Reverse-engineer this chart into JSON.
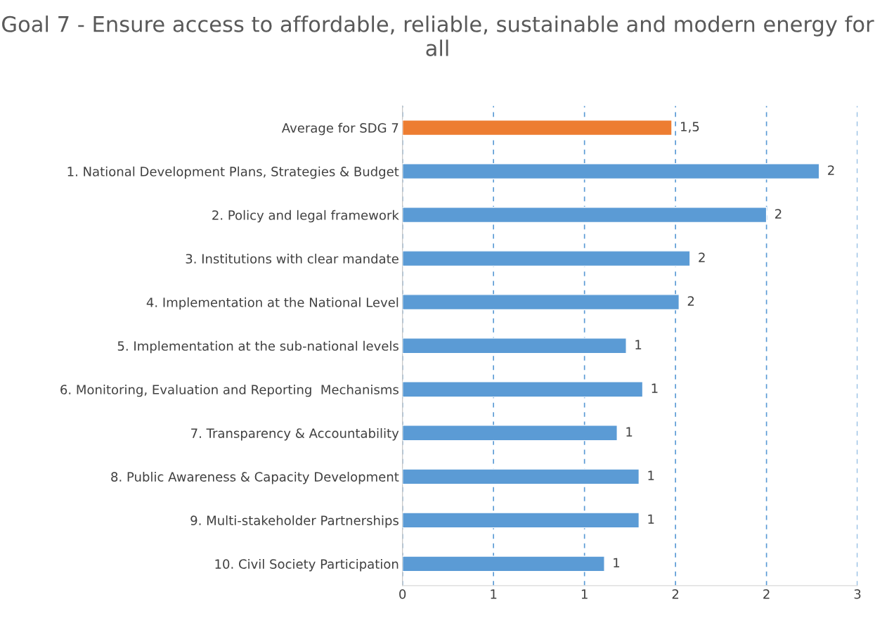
{
  "chart_data": {
    "type": "bar",
    "orientation": "horizontal",
    "title": "Goal 7 - Ensure access to affordable, reliable, sustainable and modern energy for all",
    "categories": [
      "Average for SDG 7",
      "1. National Development Plans, Strategies & Budget",
      "2. Policy and legal framework",
      "3. Institutions with clear mandate",
      "4. Implementation at the National Level",
      "5. Implementation at the sub-national levels",
      "6. Monitoring, Evaluation and Reporting  Mechanisms",
      "7. Transparency & Accountability",
      "8. Public Awareness & Capacity Development",
      "9. Multi-stakeholder Partnerships",
      "10. Civil Society Participation"
    ],
    "values": [
      1.48,
      2.29,
      2.0,
      1.58,
      1.52,
      1.23,
      1.32,
      1.18,
      1.3,
      1.3,
      1.11
    ],
    "value_labels": [
      "1,5",
      "2",
      "2",
      "2",
      "2",
      "1",
      "1",
      "1",
      "1",
      "1",
      "1"
    ],
    "colors": [
      "#ed7d31",
      "#5b9bd5",
      "#5b9bd5",
      "#5b9bd5",
      "#5b9bd5",
      "#5b9bd5",
      "#5b9bd5",
      "#5b9bd5",
      "#5b9bd5",
      "#5b9bd5",
      "#5b9bd5"
    ],
    "xlim": [
      0,
      2.5
    ],
    "xticks": [
      0,
      {
        "value": 0.5,
        "label": "1"
      },
      {
        "value": 1,
        "label": "1"
      },
      {
        "value": 1.5,
        "label": "2"
      },
      {
        "value": 2,
        "label": "2"
      },
      {
        "value": 2.5,
        "label": "3"
      }
    ],
    "grid": "x"
  }
}
